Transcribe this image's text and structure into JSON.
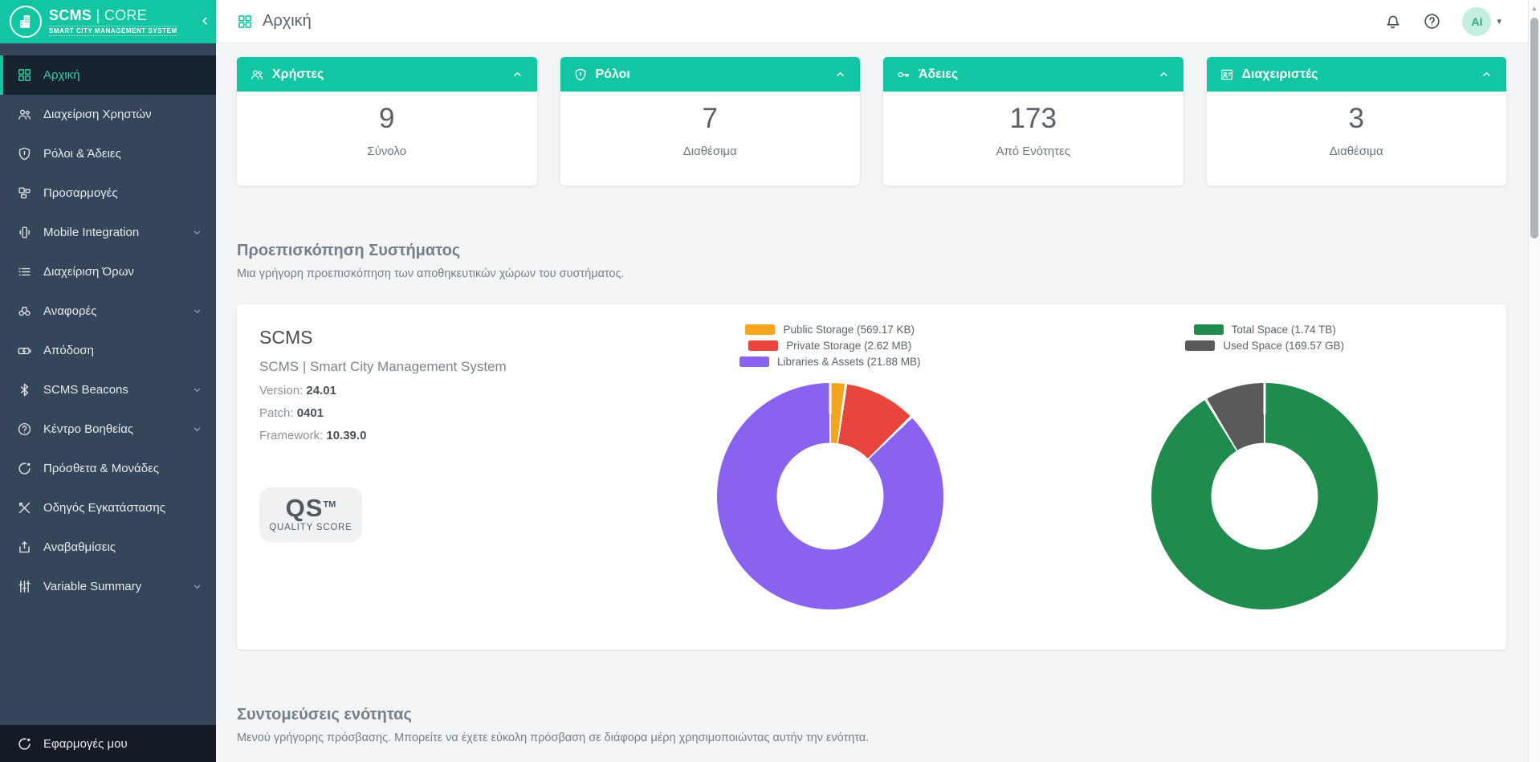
{
  "colors": {
    "accent": "#13C6A3",
    "sidebar_bg": "#36455A",
    "sidebar_footer_bg": "#141B24",
    "avatar_bg": "#C4EEDD",
    "avatar_text": "#2EA981"
  },
  "sidebar": {
    "logo": {
      "title_main": "SCMS",
      "title_sep": "|",
      "title_sub": "CORE",
      "tagline": "SMART CITY MANAGEMENT SYSTEM"
    },
    "items": [
      {
        "label": "Αρχική",
        "icon": "grid-icon",
        "active": true,
        "expandable": false
      },
      {
        "label": "Διαχείριση Χρηστών",
        "icon": "users-icon",
        "active": false,
        "expandable": false
      },
      {
        "label": "Ρόλοι & Άδειες",
        "icon": "shield-icon",
        "active": false,
        "expandable": false
      },
      {
        "label": "Προσαρμογές",
        "icon": "layout-icon",
        "active": false,
        "expandable": false
      },
      {
        "label": "Mobile Integration",
        "icon": "mobile-icon",
        "active": false,
        "expandable": true
      },
      {
        "label": "Διαχείριση Όρων",
        "icon": "terms-list-icon",
        "active": false,
        "expandable": false
      },
      {
        "label": "Αναφορές",
        "icon": "binoculars-icon",
        "active": false,
        "expandable": true
      },
      {
        "label": "Απόδοση",
        "icon": "performance-icon",
        "active": false,
        "expandable": false
      },
      {
        "label": "SCMS Beacons",
        "icon": "bluetooth-icon",
        "active": false,
        "expandable": true
      },
      {
        "label": "Κέντρο Βοηθείας",
        "icon": "help-icon",
        "active": false,
        "expandable": true
      },
      {
        "label": "Πρόσθετα & Μονάδες",
        "icon": "addons-icon",
        "active": false,
        "expandable": false
      },
      {
        "label": "Οδηγός Εγκατάστασης",
        "icon": "tools-icon",
        "active": false,
        "expandable": false
      },
      {
        "label": "Αναβαθμίσεις",
        "icon": "upload-icon",
        "active": false,
        "expandable": false
      },
      {
        "label": "Variable Summary",
        "icon": "sliders-icon",
        "active": false,
        "expandable": true
      }
    ],
    "footer": {
      "label": "Εφαρμογές μου",
      "icon": "apps-icon"
    }
  },
  "header": {
    "title": "Αρχική",
    "avatar_initials": "AI"
  },
  "stat_cards": [
    {
      "title": "Χρήστες",
      "icon": "users-icon",
      "value": "9",
      "label": "Σύνολο"
    },
    {
      "title": "Ρόλοι",
      "icon": "shield-icon",
      "value": "7",
      "label": "Διαθέσιμα"
    },
    {
      "title": "Άδειες",
      "icon": "key-icon",
      "value": "173",
      "label": "Από Ενότητες"
    },
    {
      "title": "Διαχειριστές",
      "icon": "admin-card-icon",
      "value": "3",
      "label": "Διαθέσιμα"
    }
  ],
  "system_preview": {
    "heading": "Προεπισκόπηση Συστήματος",
    "subheading": "Μια γρήγορη προεπισκόπηση των αποθηκευτικών χώρων του συστήματος.",
    "product": {
      "name": "SCMS",
      "full_name": "SCMS | Smart City Management System",
      "version_label": "Version:",
      "version": "24.01",
      "patch_label": "Patch:",
      "patch": "0401",
      "framework_label": "Framework:",
      "framework": "10.39.0"
    },
    "quality_badge": {
      "text": "QS",
      "tm": "TM",
      "caption": "QUALITY SCORE"
    }
  },
  "chart_data": [
    {
      "type": "pie",
      "subtype": "donut",
      "name": "storage-breakdown",
      "unit": "MB",
      "labels": [
        "Public Storage (569.17 KB)",
        "Private Storage (2.62 MB)",
        "Libraries & Assets (21.88 MB)"
      ],
      "values": [
        0.556,
        2.62,
        21.88
      ],
      "colors": [
        "#F2A51D",
        "#E8463C",
        "#8A62F0"
      ],
      "legend_position": "top",
      "start_angle_deg": 0,
      "direction": "clockwise"
    },
    {
      "type": "pie",
      "subtype": "donut",
      "name": "disk-space",
      "unit": "GB",
      "labels": [
        "Total Space (1.74 TB)",
        "Used Space (169.57 GB)"
      ],
      "values": [
        1781.76,
        169.57
      ],
      "colors": [
        "#1F8B4C",
        "#5A5A5A"
      ],
      "legend_position": "top",
      "start_angle_deg": 0,
      "direction": "clockwise"
    }
  ],
  "shortcuts": {
    "heading": "Συντομεύσεις ενότητας",
    "subheading": "Μενού γρήγορης πρόσβασης. Μπορείτε να έχετε εύκολη πρόσβαση σε διάφορα μέρη χρησιμοποιώντας αυτήν την ενότητα."
  }
}
